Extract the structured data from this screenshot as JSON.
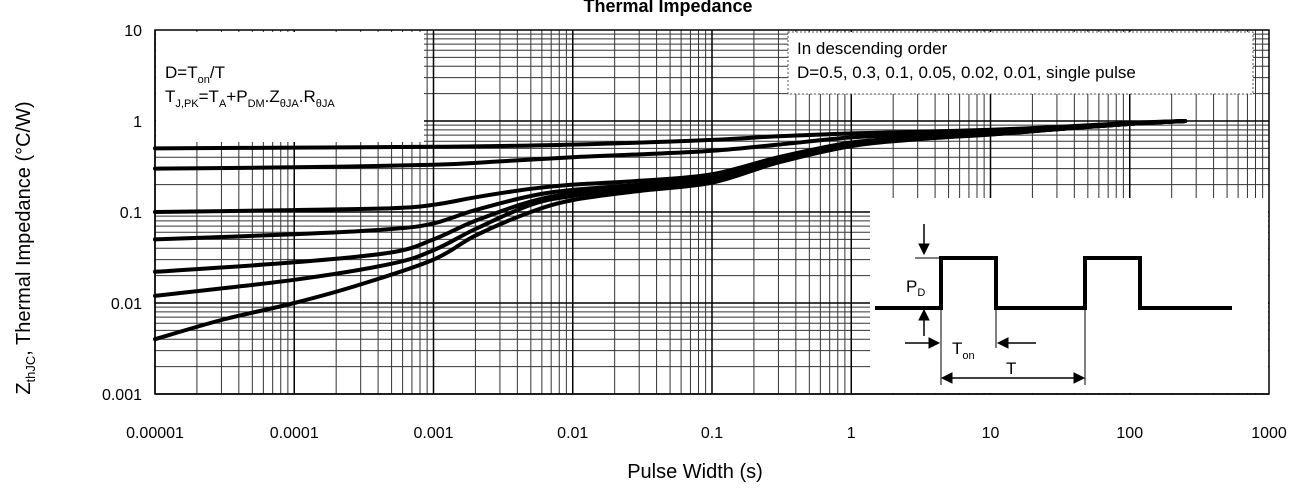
{
  "chart_data": {
    "type": "line",
    "title": "Thermal Impedance",
    "xlabel": "Pulse Width (s)",
    "ylabel_parts": {
      "z": "Z",
      "z_sub": "thJC",
      "rest": ", Thermal Impedance (°C/W)"
    },
    "x_scale": "log",
    "y_scale": "log",
    "xlim": [
      1e-05,
      1000
    ],
    "ylim": [
      0.001,
      10
    ],
    "grid": true,
    "x_ticks": [
      "0.00001",
      "0.0001",
      "0.001",
      "0.01",
      "0.1",
      "1",
      "10",
      "100",
      "1000"
    ],
    "y_ticks": [
      "0.001",
      "0.01",
      "0.1",
      "1",
      "10"
    ],
    "annotations": {
      "left_box": {
        "line1": {
          "a": "D=T",
          "a_sub": "on",
          "b": "/T"
        },
        "line2": {
          "a": "T",
          "a_sub": "J,PK",
          "b": "=T",
          "c_sub": "A",
          "d": "+P",
          "d_sub": "DM",
          "e": ".Z",
          "e_sub": "θJA",
          "f": ".R",
          "f_sub": "θJA"
        }
      },
      "right_box": {
        "line1": "In descending order",
        "line2": "D=0.5, 0.3, 0.1, 0.05, 0.02, 0.01, single pulse"
      },
      "pulse_diagram": {
        "pd_label": "P",
        "pd_sub": "D",
        "ton_label": "T",
        "ton_sub": "on",
        "t_label": "T"
      }
    },
    "series": [
      {
        "x": [
          1e-05,
          0.0001,
          0.001,
          0.01,
          0.1,
          0.3,
          1,
          3,
          10,
          30,
          100,
          250
        ],
        "y": [
          0.5,
          0.51,
          0.52,
          0.55,
          0.62,
          0.68,
          0.73,
          0.76,
          0.8,
          0.86,
          0.95,
          1.0
        ]
      },
      {
        "x": [
          1e-05,
          0.0001,
          0.001,
          0.003,
          0.01,
          0.03,
          0.1,
          0.3,
          1,
          3,
          10,
          30,
          100,
          250
        ],
        "y": [
          0.3,
          0.31,
          0.33,
          0.36,
          0.4,
          0.43,
          0.47,
          0.55,
          0.66,
          0.71,
          0.76,
          0.83,
          0.94,
          1.0
        ]
      },
      {
        "x": [
          1e-05,
          0.0001,
          0.0005,
          0.001,
          0.002,
          0.005,
          0.01,
          0.03,
          0.1,
          0.3,
          1,
          3,
          10,
          30,
          100,
          250
        ],
        "y": [
          0.1,
          0.105,
          0.11,
          0.12,
          0.145,
          0.18,
          0.2,
          0.22,
          0.26,
          0.4,
          0.58,
          0.66,
          0.73,
          0.82,
          0.93,
          1.0
        ]
      },
      {
        "x": [
          1e-05,
          0.0001,
          0.0005,
          0.001,
          0.002,
          0.005,
          0.01,
          0.03,
          0.1,
          0.3,
          1,
          3,
          10,
          30,
          100,
          250
        ],
        "y": [
          0.05,
          0.057,
          0.065,
          0.075,
          0.105,
          0.15,
          0.175,
          0.2,
          0.24,
          0.38,
          0.56,
          0.65,
          0.72,
          0.82,
          0.93,
          1.0
        ]
      },
      {
        "x": [
          1e-05,
          0.0001,
          0.0005,
          0.001,
          0.002,
          0.005,
          0.01,
          0.03,
          0.1,
          0.3,
          1,
          3,
          10,
          30,
          100,
          250
        ],
        "y": [
          0.022,
          0.028,
          0.036,
          0.05,
          0.08,
          0.13,
          0.16,
          0.19,
          0.23,
          0.37,
          0.55,
          0.64,
          0.72,
          0.81,
          0.93,
          1.0
        ]
      },
      {
        "x": [
          1e-05,
          0.0001,
          0.0005,
          0.001,
          0.002,
          0.005,
          0.01,
          0.03,
          0.1,
          0.3,
          1,
          3,
          10,
          30,
          100,
          250
        ],
        "y": [
          0.012,
          0.018,
          0.027,
          0.038,
          0.065,
          0.12,
          0.15,
          0.18,
          0.22,
          0.36,
          0.54,
          0.64,
          0.71,
          0.81,
          0.93,
          1.0
        ]
      },
      {
        "x": [
          1e-05,
          3e-05,
          0.0001,
          0.0003,
          0.001,
          0.002,
          0.005,
          0.01,
          0.03,
          0.1,
          0.3,
          1,
          3,
          10,
          30,
          100,
          250
        ],
        "y": [
          0.004,
          0.0065,
          0.01,
          0.016,
          0.03,
          0.055,
          0.1,
          0.135,
          0.17,
          0.21,
          0.35,
          0.53,
          0.63,
          0.71,
          0.81,
          0.93,
          1.0
        ]
      }
    ]
  }
}
